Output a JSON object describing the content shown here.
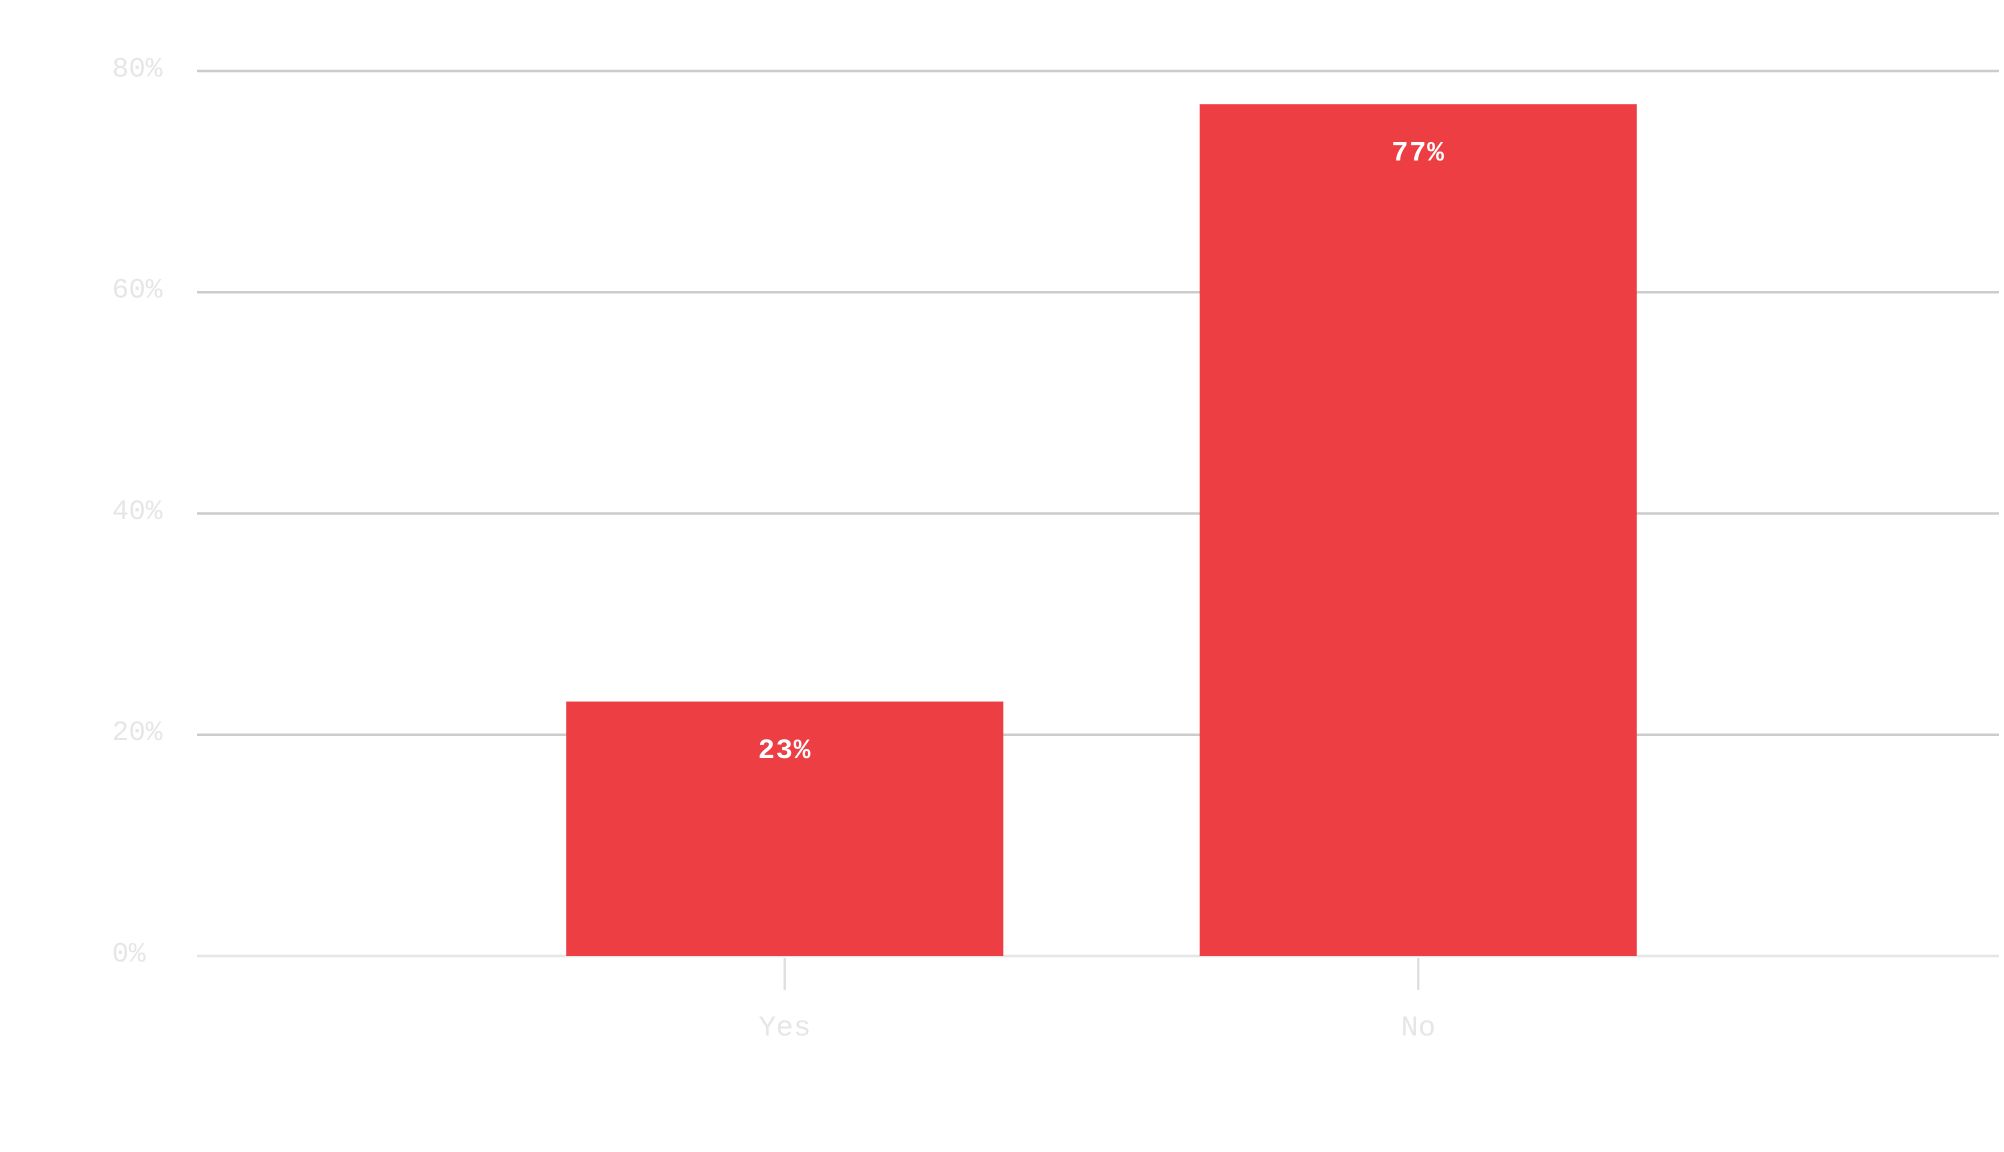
{
  "chart_data": {
    "type": "bar",
    "categories": [
      "Yes",
      "No"
    ],
    "values": [
      23,
      77
    ],
    "value_labels": [
      "23%",
      "77%"
    ],
    "color": "#ec3e43",
    "ylim": [
      0,
      80
    ],
    "yticks": [
      {
        "value": 0,
        "label": "0%"
      },
      {
        "value": 20,
        "label": "20%"
      },
      {
        "value": 40,
        "label": "40%"
      },
      {
        "value": 60,
        "label": "60%"
      },
      {
        "value": 80,
        "label": "80%"
      }
    ],
    "grid": true
  }
}
